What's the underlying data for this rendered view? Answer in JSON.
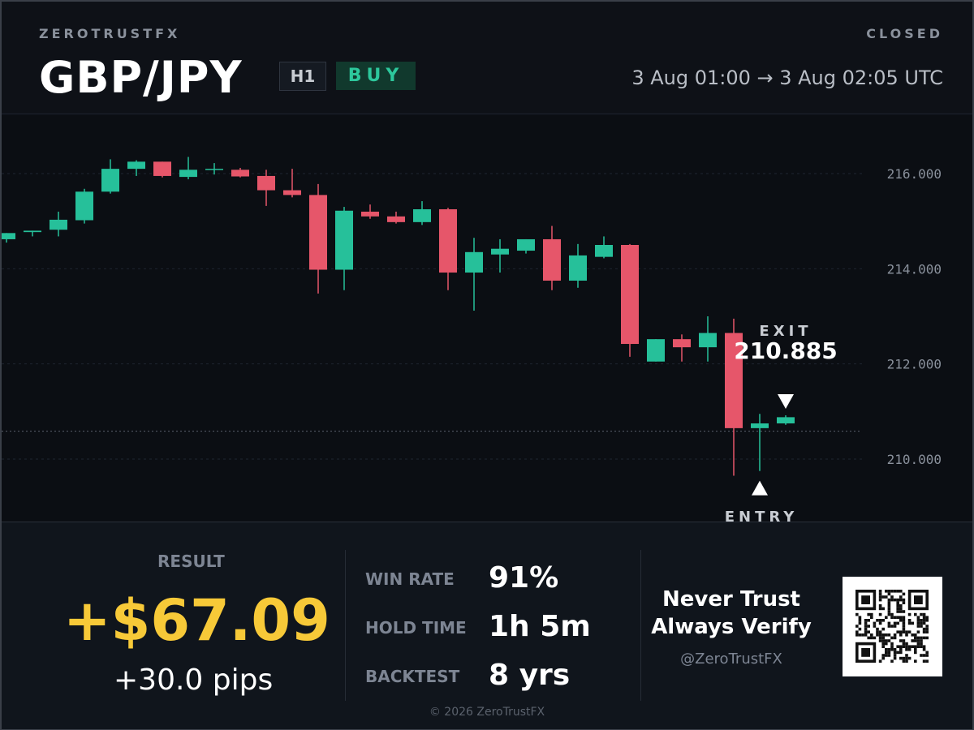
{
  "header": {
    "brand": "ZEROTRUSTFX",
    "status": "CLOSED",
    "pair": "GBP/JPY",
    "timeframe": "H1",
    "side": "BUY",
    "time_range": "3 Aug 01:00  →  3 Aug 02:05  UTC"
  },
  "chart_data": {
    "type": "candlestick",
    "y_ticks": [
      "216.000",
      "214.000",
      "212.000",
      "210.000"
    ],
    "ylim": [
      208.6,
      217.4
    ],
    "candles": [
      {
        "o": 214.62,
        "h": 214.75,
        "l": 214.55,
        "c": 214.75
      },
      {
        "o": 214.77,
        "h": 214.8,
        "l": 214.68,
        "c": 214.8
      },
      {
        "o": 214.82,
        "h": 215.2,
        "l": 214.68,
        "c": 215.03
      },
      {
        "o": 215.02,
        "h": 215.68,
        "l": 214.95,
        "c": 215.62
      },
      {
        "o": 215.62,
        "h": 216.3,
        "l": 215.58,
        "c": 216.1
      },
      {
        "o": 216.1,
        "h": 216.28,
        "l": 215.95,
        "c": 216.25
      },
      {
        "o": 216.25,
        "h": 216.25,
        "l": 215.92,
        "c": 215.95
      },
      {
        "o": 215.93,
        "h": 216.35,
        "l": 215.88,
        "c": 216.08
      },
      {
        "o": 216.08,
        "h": 216.22,
        "l": 215.98,
        "c": 216.1
      },
      {
        "o": 216.08,
        "h": 216.12,
        "l": 215.92,
        "c": 215.94
      },
      {
        "o": 215.95,
        "h": 216.08,
        "l": 215.32,
        "c": 215.65
      },
      {
        "o": 215.65,
        "h": 216.1,
        "l": 215.5,
        "c": 215.55
      },
      {
        "o": 215.55,
        "h": 215.78,
        "l": 213.48,
        "c": 213.98
      },
      {
        "o": 213.98,
        "h": 215.3,
        "l": 213.55,
        "c": 215.22
      },
      {
        "o": 215.2,
        "h": 215.35,
        "l": 215.05,
        "c": 215.1
      },
      {
        "o": 215.1,
        "h": 215.2,
        "l": 214.95,
        "c": 214.98
      },
      {
        "o": 214.98,
        "h": 215.42,
        "l": 214.92,
        "c": 215.25
      },
      {
        "o": 215.25,
        "h": 215.28,
        "l": 213.55,
        "c": 213.92
      },
      {
        "o": 213.92,
        "h": 214.65,
        "l": 213.12,
        "c": 214.35
      },
      {
        "o": 214.3,
        "h": 214.62,
        "l": 213.92,
        "c": 214.42
      },
      {
        "o": 214.38,
        "h": 214.62,
        "l": 214.32,
        "c": 214.62
      },
      {
        "o": 214.62,
        "h": 214.9,
        "l": 213.55,
        "c": 213.75
      },
      {
        "o": 213.75,
        "h": 214.52,
        "l": 213.6,
        "c": 214.28
      },
      {
        "o": 214.25,
        "h": 214.68,
        "l": 214.22,
        "c": 214.5
      },
      {
        "o": 214.5,
        "h": 214.52,
        "l": 212.15,
        "c": 212.42
      },
      {
        "o": 212.05,
        "h": 212.52,
        "l": 212.05,
        "c": 212.52
      },
      {
        "o": 212.52,
        "h": 212.62,
        "l": 212.05,
        "c": 212.35
      },
      {
        "o": 212.35,
        "h": 213.0,
        "l": 212.05,
        "c": 212.65
      },
      {
        "o": 212.65,
        "h": 212.95,
        "l": 209.65,
        "c": 210.65
      },
      {
        "o": 210.65,
        "h": 210.95,
        "l": 209.75,
        "c": 210.75
      },
      {
        "o": 210.75,
        "h": 210.92,
        "l": 210.72,
        "c": 210.88
      }
    ],
    "exit": {
      "label": "EXIT",
      "price": "210.885"
    },
    "entry": {
      "label": "ENTRY",
      "price": 210.585
    },
    "entry_candle": 29,
    "exit_candle": 30
  },
  "colors": {
    "up": "#26c09a",
    "down": "#e6566a"
  },
  "result": {
    "label": "RESULT",
    "value": "+$67.09",
    "pips": "+30.0 pips"
  },
  "stats": [
    {
      "label": "WIN RATE",
      "value": "91%"
    },
    {
      "label": "HOLD TIME",
      "value": "1h 5m"
    },
    {
      "label": "BACKTEST",
      "value": "8 yrs"
    }
  ],
  "promo": {
    "line1": "Never Trust",
    "line2": "Always Verify",
    "handle": "@ZeroTrustFX",
    "qr_icon": "qr-code-icon"
  },
  "footer": {
    "copyright": "© 2026 ZeroTrustFX"
  }
}
